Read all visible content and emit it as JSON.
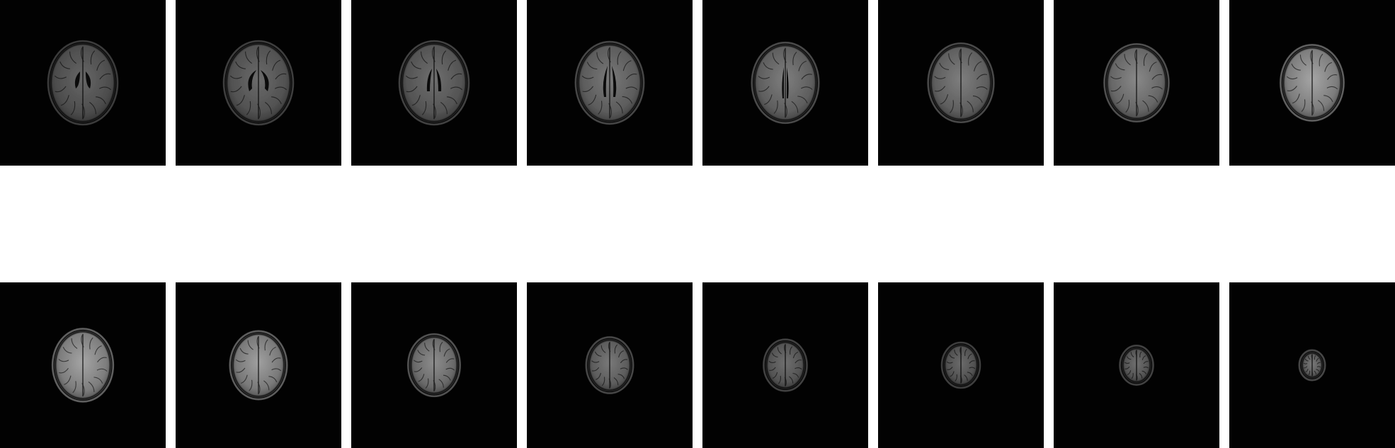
{
  "figure": {
    "background": "#ffffff",
    "tile_background": "#020202",
    "rows": [
      {
        "name": "top-row",
        "slices": [
          {
            "level": 1,
            "brain_scale": 1.0,
            "ventricle": "frontal-horns",
            "brightness": 0.42
          },
          {
            "level": 2,
            "brain_scale": 1.0,
            "ventricle": "butterfly",
            "brightness": 0.44
          },
          {
            "level": 3,
            "brain_scale": 1.0,
            "ventricle": "narrow-horns",
            "brightness": 0.46
          },
          {
            "level": 4,
            "brain_scale": 0.98,
            "ventricle": "body",
            "brightness": 0.5
          },
          {
            "level": 5,
            "brain_scale": 0.96,
            "ventricle": "slit",
            "brightness": 0.52
          },
          {
            "level": 6,
            "brain_scale": 0.94,
            "ventricle": "none",
            "brightness": 0.52
          },
          {
            "level": 7,
            "brain_scale": 0.92,
            "ventricle": "none",
            "brightness": 0.56
          },
          {
            "level": 8,
            "brain_scale": 0.9,
            "ventricle": "none",
            "brightness": 0.68
          }
        ]
      },
      {
        "name": "bottom-row",
        "slices": [
          {
            "level": 9,
            "brain_scale": 0.86,
            "ventricle": "none",
            "brightness": 0.68
          },
          {
            "level": 10,
            "brain_scale": 0.8,
            "ventricle": "none",
            "brightness": 0.66
          },
          {
            "level": 11,
            "brain_scale": 0.72,
            "ventricle": "none",
            "brightness": 0.58
          },
          {
            "level": 12,
            "brain_scale": 0.64,
            "ventricle": "none",
            "brightness": 0.5
          },
          {
            "level": 13,
            "brain_scale": 0.58,
            "ventricle": "none",
            "brightness": 0.46
          },
          {
            "level": 14,
            "brain_scale": 0.5,
            "ventricle": "none",
            "brightness": 0.44
          },
          {
            "level": 15,
            "brain_scale": 0.42,
            "ventricle": "none",
            "brightness": 0.46
          },
          {
            "level": 16,
            "brain_scale": 0.3,
            "ventricle": "none",
            "brightness": 0.5
          }
        ]
      }
    ]
  }
}
